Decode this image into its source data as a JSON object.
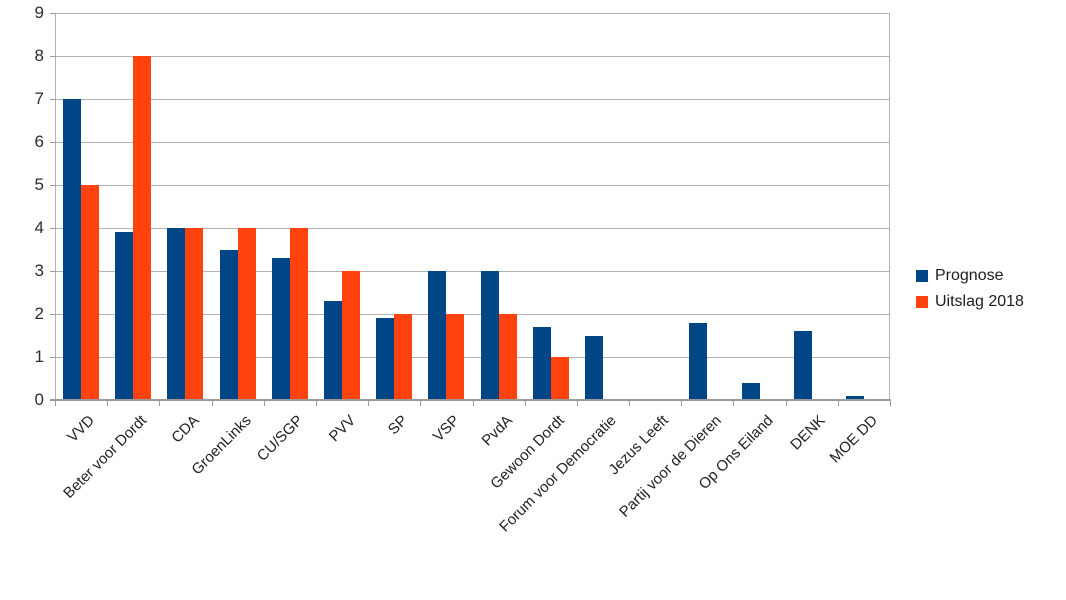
{
  "chart_data": {
    "type": "bar",
    "title": "",
    "xlabel": "",
    "ylabel": "",
    "categories": [
      "VVD",
      "Beter voor Dordt",
      "CDA",
      "GroenLinks",
      "CU/SGP",
      "PVV",
      "SP",
      "VSP",
      "PvdA",
      "Gewoon Dordt",
      "Forum voor Democratie",
      "Jezus Leeft",
      "Partij voor de Dieren",
      "Op Ons Eiland",
      "DENK",
      "MOE DD"
    ],
    "series": [
      {
        "name": "Prognose",
        "color": "#004586",
        "values": [
          7,
          3.9,
          4,
          3.5,
          3.3,
          2.3,
          1.9,
          3,
          3,
          1.7,
          1.5,
          0,
          1.8,
          0.4,
          1.6,
          0.1
        ]
      },
      {
        "name": "Uitslag 2018",
        "color": "#FF420E",
        "values": [
          5,
          8,
          4,
          4,
          4,
          3,
          2,
          2,
          2,
          1,
          0,
          0,
          0,
          0,
          0,
          0
        ]
      }
    ],
    "ylim": [
      0,
      9
    ],
    "yticks": [
      0,
      1,
      2,
      3,
      4,
      5,
      6,
      7,
      8,
      9
    ],
    "grid": true,
    "legend_position": "right"
  },
  "colors": {
    "grid": "#b3b3b3",
    "axis": "#9a9a9a",
    "text": "#222222",
    "background": "#ffffff"
  }
}
